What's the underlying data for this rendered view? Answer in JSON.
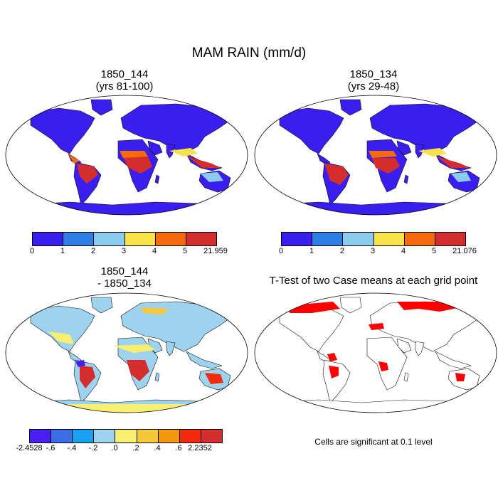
{
  "main_title": "MAM RAIN (mm/d)",
  "panels": {
    "p1": {
      "title_line1": "1850_144",
      "title_line2": "(yrs 81-100)"
    },
    "p2": {
      "title_line1": "1850_134",
      "title_line2": "(yrs 29-48)"
    },
    "p3": {
      "title_line1": "1850_144",
      "title_line2": "- 1850_134"
    },
    "p4": {
      "title_line1": "T-Test of two Case means at each grid point"
    }
  },
  "colorbars": {
    "rain1": {
      "colors": [
        "#3a1ef0",
        "#2f7de6",
        "#8ccbf0",
        "#f7e24a",
        "#f66a0e",
        "#d42d2d"
      ],
      "labels": [
        "0",
        "1",
        "2",
        "3",
        "4",
        "5",
        "21.959"
      ]
    },
    "rain2": {
      "colors": [
        "#3a1ef0",
        "#2f7de6",
        "#8ccbf0",
        "#f7e24a",
        "#f66a0e",
        "#d42d2d"
      ],
      "labels": [
        "0",
        "1",
        "2",
        "3",
        "4",
        "5",
        "21.076"
      ]
    },
    "diff": {
      "colors": [
        "#4a1ef0",
        "#3a6ee6",
        "#1aa0f0",
        "#9dd3ee",
        "#f8ef70",
        "#f5c83a",
        "#f5960f",
        "#f42a0e",
        "#d42d2d"
      ],
      "labels": [
        "-2.4528",
        "-.6",
        "-.4",
        "-.2",
        ".0",
        ".2",
        ".4",
        ".6",
        "2.2352"
      ]
    }
  },
  "significance_note": "Cells are significant at 0.1 level",
  "colors": {
    "land_wet": "#d42d2d",
    "land_dry": "#3a1ef0",
    "significant": "#ff0000"
  }
}
